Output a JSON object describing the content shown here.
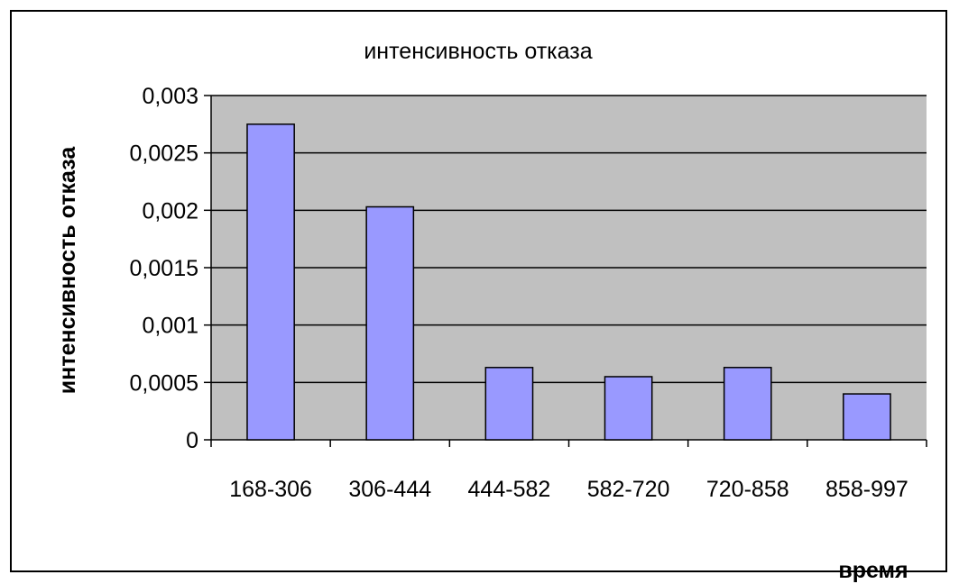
{
  "chart_data": {
    "type": "bar",
    "title": "интенсивность отказа",
    "xlabel": "время",
    "ylabel": "интенсивность  отказа",
    "categories": [
      "168-306",
      "306-444",
      "444-582",
      "582-720",
      "720-858",
      "858-997"
    ],
    "values": [
      0.00275,
      0.00203,
      0.00063,
      0.00055,
      0.00063,
      0.0004
    ],
    "ylim": [
      0,
      0.003
    ],
    "yticks": [
      0,
      0.0005,
      0.001,
      0.0015,
      0.002,
      0.0025,
      0.003
    ],
    "ytick_labels": [
      "0",
      "0,0005",
      "0,001",
      "0,0015",
      "0,002",
      "0,0025",
      "0,003"
    ],
    "grid": true,
    "legend": "none",
    "colors": {
      "bar_fill": "#9999ff",
      "bar_stroke": "#000000",
      "plot_background": "#c0c0c0",
      "gridline": "#000000"
    }
  }
}
